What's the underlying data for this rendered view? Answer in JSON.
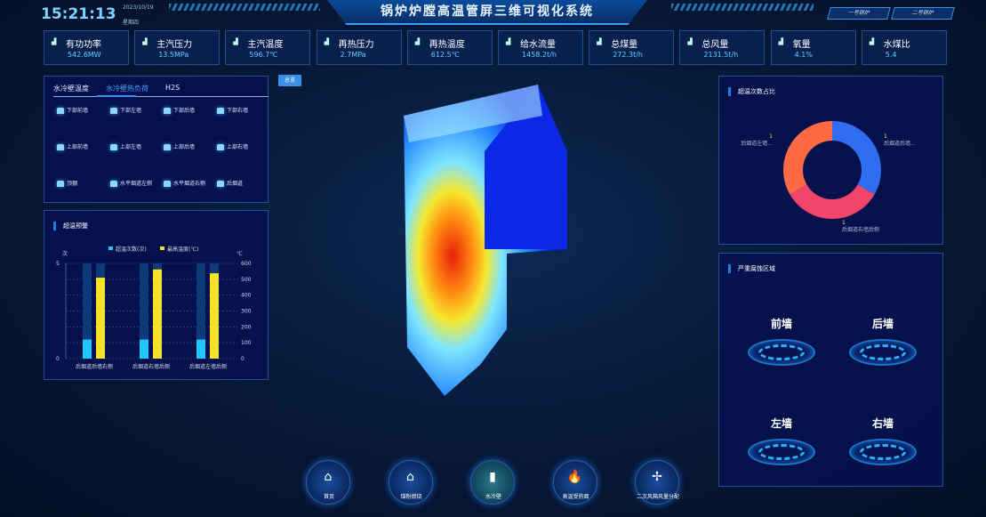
{
  "header": {
    "time": "15:21:13",
    "date": "2023/10/19",
    "weekday": "星期四",
    "title": "锅炉炉膛高温管屏三维可视化系统",
    "boiler_buttons": [
      "一号锅炉",
      "二号锅炉"
    ]
  },
  "kpis": [
    {
      "label": "有功功率",
      "value": "542.6MW"
    },
    {
      "label": "主汽压力",
      "value": "13.5MPa"
    },
    {
      "label": "主汽温度",
      "value": "596.7℃"
    },
    {
      "label": "再热压力",
      "value": "2.7MPa"
    },
    {
      "label": "再热温度",
      "value": "612.5℃"
    },
    {
      "label": "给水流量",
      "value": "1458.2t/h"
    },
    {
      "label": "总煤量",
      "value": "272.3t/h"
    },
    {
      "label": "总风量",
      "value": "2131.5t/h"
    },
    {
      "label": "氧量",
      "value": "4.1%"
    },
    {
      "label": "水煤比",
      "value": "5.4"
    }
  ],
  "wall_panel": {
    "tabs": [
      "水冷壁温度",
      "水冷壁热负荷",
      "H2S"
    ],
    "active_tab": 1,
    "items": [
      "下部前墙",
      "下部左墙",
      "下部后墙",
      "下部右墙",
      "上部前墙",
      "上部左墙",
      "上部后墙",
      "上部右墙",
      "顶棚",
      "水平烟道左侧",
      "水平烟道右侧",
      "后烟道"
    ]
  },
  "overview_button": "总览",
  "chart_data": [
    {
      "type": "bar",
      "title": "超温预警",
      "categories": [
        "后烟道后墙右侧",
        "后烟道右墙后侧",
        "后烟道左墙后侧"
      ],
      "series": [
        {
          "name": "超温次数(次)",
          "values": [
            1,
            1,
            1
          ],
          "axis": "left",
          "color": "#1ec8ff"
        },
        {
          "name": "最高温度(℃)",
          "values": [
            510,
            562,
            538
          ],
          "axis": "right",
          "color": "#f5e02a"
        }
      ],
      "ylabel_left": "次",
      "ylabel_right": "℃",
      "ylim_left": [
        0,
        5
      ],
      "ylim_right": [
        0,
        600
      ],
      "yticks_left": [
        0,
        5
      ],
      "yticks_right": [
        0,
        100,
        200,
        300,
        400,
        500,
        600
      ],
      "legend": "top"
    },
    {
      "type": "pie",
      "title": "超温次数占比",
      "donut": true,
      "slices": [
        {
          "label": "后烟道后墙...",
          "value": 1,
          "color": "#2f6cf0"
        },
        {
          "label": "后烟道右墙后侧",
          "value": 1,
          "color": "#f2456a"
        },
        {
          "label": "后烟道左墙...",
          "value": 1,
          "color": "#ff6a45"
        }
      ]
    }
  ],
  "corrosion": {
    "title": "严重腐蚀区域",
    "walls": [
      "前墙",
      "后墙",
      "左墙",
      "右墙"
    ]
  },
  "nav": [
    {
      "label": "首页",
      "icon": "home-icon"
    },
    {
      "label": "煤粉燃烧",
      "icon": "boiler-icon"
    },
    {
      "label": "水冷壁",
      "icon": "tube-icon"
    },
    {
      "label": "高温受热面",
      "icon": "flame-icon"
    },
    {
      "label": "二次风箱风量分配",
      "icon": "fan-icon"
    }
  ],
  "active_nav": 2
}
